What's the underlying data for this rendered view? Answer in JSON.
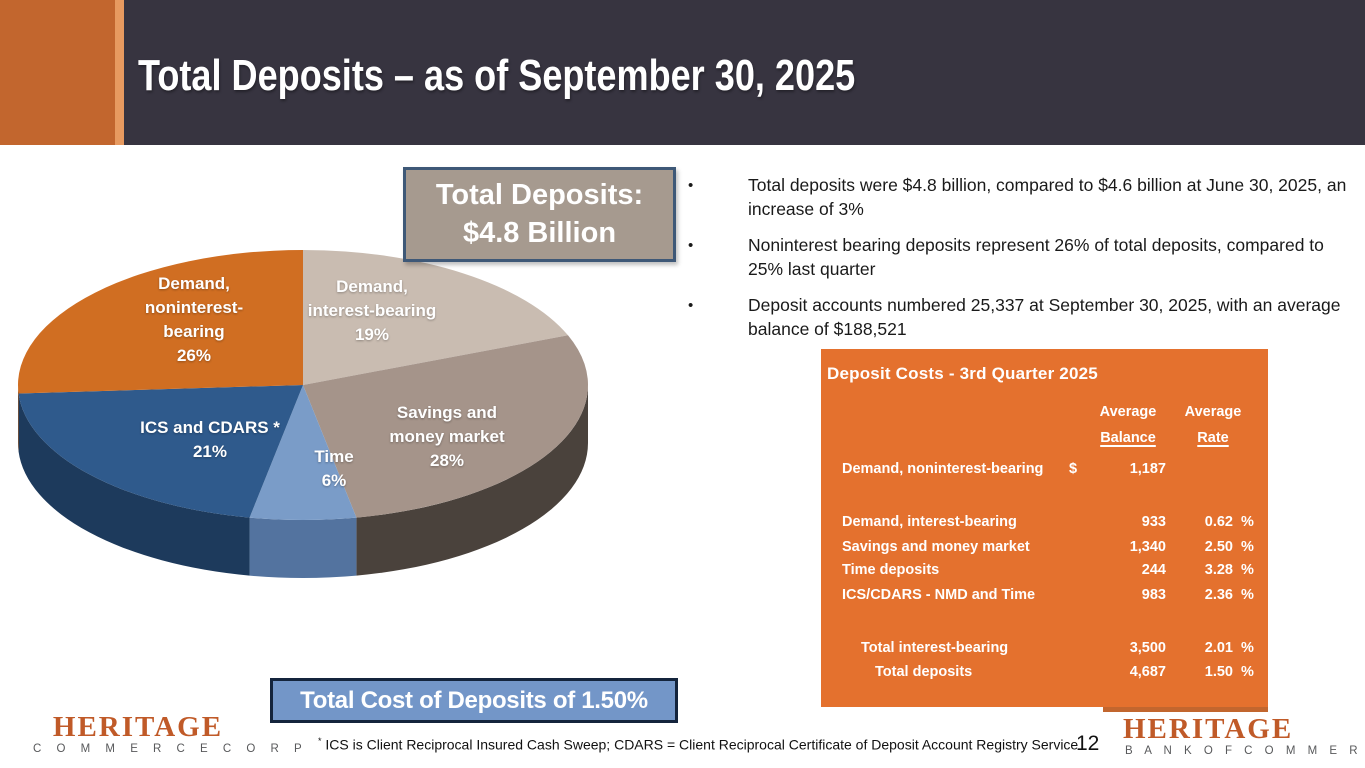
{
  "header": {
    "title": "Total Deposits – as of September 30, 2025"
  },
  "chart_data": {
    "type": "pie",
    "title": "Total Deposits: $4.8 Billion",
    "start_angle_deg": 0,
    "clockwise": true,
    "slices": [
      {
        "label": "Demand, interest-bearing",
        "pct": 19,
        "color": "#C9BCB1",
        "side_color": "#8A7F74",
        "label_lines": [
          "Demand,",
          "interest-bearing",
          "19%"
        ],
        "label_pos": [
          372,
          311
        ]
      },
      {
        "label": "Savings and money market",
        "pct": 28,
        "color": "#A5948A",
        "side_color": "#4A423C",
        "label_lines": [
          "Savings and",
          "money market",
          "28%"
        ],
        "label_pos": [
          447,
          437
        ]
      },
      {
        "label": "Time",
        "pct": 6,
        "color": "#7A9CC8",
        "side_color": "#53739F",
        "label_lines": [
          "Time",
          "6%"
        ],
        "label_pos": [
          334,
          469
        ]
      },
      {
        "label": "ICS and CDARS *",
        "pct": 21,
        "color": "#2F5A8C",
        "side_color": "#1D3A5C",
        "label_lines": [
          "ICS and CDARS *",
          "21%"
        ],
        "label_pos": [
          210,
          440
        ]
      },
      {
        "label": "Demand, noninterest-bearing",
        "pct": 26,
        "color": "#D06E22",
        "side_color": "#8F4A15",
        "label_lines": [
          "Demand,",
          "noninterest-",
          "bearing",
          "26%"
        ],
        "label_pos": [
          194,
          320
        ]
      }
    ]
  },
  "total_deposits_box": {
    "line1": "Total Deposits:",
    "line2": "$4.8 Billion"
  },
  "bullets": [
    "Total deposits were $4.8 billion, compared to $4.6 billion at June 30, 2025, an increase of 3%",
    "Noninterest bearing deposits represent 26% of total deposits, compared to 25% last quarter",
    "Deposit accounts numbered 25,337 at September 30, 2025, with an average balance of $188,521"
  ],
  "deposit_costs_table": {
    "title": "Deposit Costs - 3rd Quarter 2025",
    "col_headers": {
      "balance": [
        "Average",
        "Balance"
      ],
      "rate": [
        "Average",
        "Rate"
      ]
    },
    "rows": [
      {
        "label": "Demand, noninterest-bearing",
        "dollar": "$",
        "balance": "1,187",
        "rate": "",
        "pct": "",
        "indent": 0
      },
      {
        "label": "Demand, interest-bearing",
        "dollar": "",
        "balance": "933",
        "rate": "0.62",
        "pct": "%",
        "indent": 0
      },
      {
        "label": "Savings and money market",
        "dollar": "",
        "balance": "1,340",
        "rate": "2.50",
        "pct": "%",
        "indent": 0
      },
      {
        "label": "Time deposits",
        "dollar": "",
        "balance": "244",
        "rate": "3.28",
        "pct": "%",
        "indent": 0
      },
      {
        "label": "ICS/CDARS - NMD and Time",
        "dollar": "",
        "balance": "983",
        "rate": "2.36",
        "pct": "%",
        "indent": 0
      },
      {
        "label": "Total interest-bearing",
        "dollar": "",
        "balance": "3,500",
        "rate": "2.01",
        "pct": "%",
        "indent": 1
      },
      {
        "label": "Total deposits",
        "dollar": "",
        "balance": "4,687",
        "rate": "1.50",
        "pct": "%",
        "indent": 2
      }
    ]
  },
  "total_cost_box": {
    "text": "Total Cost of Deposits of 1.50%"
  },
  "footnote": {
    "star": "*",
    "text": " ICS is Client Reciprocal Insured Cash Sweep; CDARS = Client Reciprocal Certificate of Deposit Account Registry Service"
  },
  "page_number": "12",
  "logos": {
    "left": {
      "line1": "HERITAGE",
      "line2": "C O M M E R C E   C O R P"
    },
    "right": {
      "line1": "HERITAGE",
      "line2": "B A N K   O F   C O M M E R C E"
    }
  },
  "colors": {
    "header_bg": "#373440",
    "header_accent": "#C2662E",
    "header_accent_light": "#E79A60",
    "table_bg": "#E4712E",
    "total_deposits_box_bg": "#A69A8F",
    "total_deposits_box_border": "#3E5877",
    "total_cost_box_bg": "#7396C8",
    "total_cost_box_border": "#14243C",
    "logo_orange": "#C05A28",
    "logo_gray": "#58595B",
    "text_dark": "#1A1A1A"
  }
}
